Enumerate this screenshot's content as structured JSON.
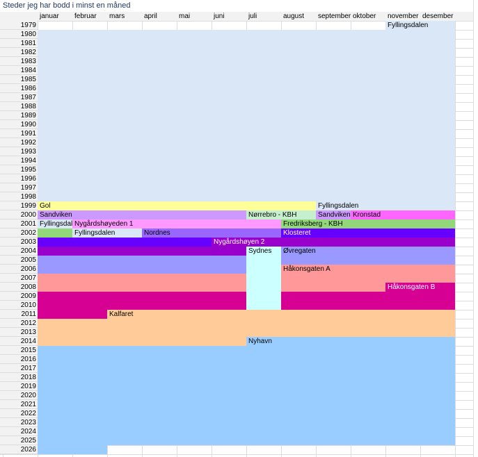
{
  "title": "Steder jeg har bodd i minst en måned",
  "months": [
    "januar",
    "februar",
    "mars",
    "april",
    "mai",
    "juni",
    "juli",
    "august",
    "september",
    "oktober",
    "november",
    "desember"
  ],
  "colors": {
    "fyllingsdalen": "#dae7f6",
    "gol": "#ffff99",
    "sandviken": "#cc99ff",
    "norrebro": "#c6efce",
    "kronstad": "#ff66ff",
    "nygardshoyeden1": "#ff99ff",
    "fredriksberg": "#92d87a",
    "nordnes": "#9966ff",
    "klosteret": "#6600ff",
    "nygardshoyen2": "#9900cc",
    "sydnes": "#ccffff",
    "ovregaten": "#9999ff",
    "hakonsgatenA": "#ff9999",
    "hakonsgatenB": "#d60093",
    "kalfaret": "#ffcc99",
    "nyhavn": "#99ccff"
  },
  "rows": [
    {
      "year": "1979",
      "segments": [
        {
          "from": 11,
          "to": 12,
          "color": "fyllingsdalen",
          "label": "Fyllingsdalen"
        }
      ]
    },
    {
      "year": "1980",
      "segments": [
        {
          "from": 1,
          "to": 12,
          "color": "fyllingsdalen"
        }
      ]
    },
    {
      "year": "1981",
      "segments": [
        {
          "from": 1,
          "to": 12,
          "color": "fyllingsdalen"
        }
      ]
    },
    {
      "year": "1982",
      "segments": [
        {
          "from": 1,
          "to": 12,
          "color": "fyllingsdalen"
        }
      ]
    },
    {
      "year": "1983",
      "segments": [
        {
          "from": 1,
          "to": 12,
          "color": "fyllingsdalen"
        }
      ]
    },
    {
      "year": "1984",
      "segments": [
        {
          "from": 1,
          "to": 12,
          "color": "fyllingsdalen"
        }
      ]
    },
    {
      "year": "1985",
      "segments": [
        {
          "from": 1,
          "to": 12,
          "color": "fyllingsdalen"
        }
      ]
    },
    {
      "year": "1986",
      "segments": [
        {
          "from": 1,
          "to": 12,
          "color": "fyllingsdalen"
        }
      ]
    },
    {
      "year": "1987",
      "segments": [
        {
          "from": 1,
          "to": 12,
          "color": "fyllingsdalen"
        }
      ]
    },
    {
      "year": "1988",
      "segments": [
        {
          "from": 1,
          "to": 12,
          "color": "fyllingsdalen"
        }
      ]
    },
    {
      "year": "1989",
      "segments": [
        {
          "from": 1,
          "to": 12,
          "color": "fyllingsdalen"
        }
      ]
    },
    {
      "year": "1990",
      "segments": [
        {
          "from": 1,
          "to": 12,
          "color": "fyllingsdalen"
        }
      ]
    },
    {
      "year": "1991",
      "segments": [
        {
          "from": 1,
          "to": 12,
          "color": "fyllingsdalen"
        }
      ]
    },
    {
      "year": "1992",
      "segments": [
        {
          "from": 1,
          "to": 12,
          "color": "fyllingsdalen"
        }
      ]
    },
    {
      "year": "1993",
      "segments": [
        {
          "from": 1,
          "to": 12,
          "color": "fyllingsdalen"
        }
      ]
    },
    {
      "year": "1994",
      "segments": [
        {
          "from": 1,
          "to": 12,
          "color": "fyllingsdalen"
        }
      ]
    },
    {
      "year": "1995",
      "segments": [
        {
          "from": 1,
          "to": 12,
          "color": "fyllingsdalen"
        }
      ]
    },
    {
      "year": "1996",
      "segments": [
        {
          "from": 1,
          "to": 12,
          "color": "fyllingsdalen"
        }
      ]
    },
    {
      "year": "1997",
      "segments": [
        {
          "from": 1,
          "to": 12,
          "color": "fyllingsdalen"
        }
      ]
    },
    {
      "year": "1998",
      "segments": [
        {
          "from": 1,
          "to": 12,
          "color": "fyllingsdalen"
        }
      ]
    },
    {
      "year": "1999",
      "segments": [
        {
          "from": 1,
          "to": 8,
          "color": "gol",
          "label": "Gol"
        },
        {
          "from": 9,
          "to": 12,
          "color": "fyllingsdalen",
          "label": "Fyllingsdalen"
        }
      ]
    },
    {
      "year": "2000",
      "segments": [
        {
          "from": 1,
          "to": 6,
          "color": "sandviken",
          "label": "Sandviken"
        },
        {
          "from": 7,
          "to": 8,
          "color": "norrebro",
          "label": "Nørrebro - KBH"
        },
        {
          "from": 9,
          "to": 9,
          "color": "sandviken",
          "label": "Sandviken"
        },
        {
          "from": 10,
          "to": 12,
          "color": "kronstad",
          "label": "Kronstad"
        }
      ]
    },
    {
      "year": "2001",
      "segments": [
        {
          "from": 1,
          "to": 1,
          "color": "fyllingsdalen",
          "label": "Fyllingsdalen"
        },
        {
          "from": 2,
          "to": 7,
          "color": "nygardshoyeden1",
          "label": "Nygårdshøyeden 1"
        },
        {
          "from": 8,
          "to": 12,
          "color": "fredriksberg",
          "label": "Fredriksberg - KBH"
        }
      ]
    },
    {
      "year": "2002",
      "segments": [
        {
          "from": 1,
          "to": 1,
          "color": "fredriksberg"
        },
        {
          "from": 2,
          "to": 3,
          "color": "fyllingsdalen",
          "label": "Fyllingsdalen"
        },
        {
          "from": 4,
          "to": 7,
          "color": "nordnes",
          "label": "Nordnes"
        },
        {
          "from": 8,
          "to": 12,
          "color": "klosteret",
          "label": "Klosteret",
          "light": true
        }
      ]
    },
    {
      "year": "2003",
      "segments": [
        {
          "from": 1,
          "to": 5,
          "color": "klosteret"
        },
        {
          "from": 6,
          "to": 12,
          "color": "nygardshoyen2",
          "label": "Nygårdshøyen 2",
          "light": true
        }
      ]
    },
    {
      "year": "2004",
      "segments": [
        {
          "from": 1,
          "to": 6,
          "color": "nygardshoyen2"
        },
        {
          "from": 7,
          "to": 7,
          "color": "sydnes",
          "label": "Sydnes"
        },
        {
          "from": 8,
          "to": 12,
          "color": "ovregaten",
          "label": "Øvregaten"
        }
      ]
    },
    {
      "year": "2005",
      "segments": [
        {
          "from": 1,
          "to": 6,
          "color": "ovregaten"
        },
        {
          "from": 7,
          "to": 7,
          "color": "sydnes"
        },
        {
          "from": 8,
          "to": 12,
          "color": "ovregaten"
        }
      ]
    },
    {
      "year": "2006",
      "segments": [
        {
          "from": 1,
          "to": 6,
          "color": "ovregaten"
        },
        {
          "from": 7,
          "to": 7,
          "color": "sydnes"
        },
        {
          "from": 8,
          "to": 12,
          "color": "hakonsgatenA",
          "label": "Håkonsgaten A"
        }
      ]
    },
    {
      "year": "2007",
      "segments": [
        {
          "from": 1,
          "to": 6,
          "color": "hakonsgatenA"
        },
        {
          "from": 7,
          "to": 7,
          "color": "sydnes"
        },
        {
          "from": 8,
          "to": 12,
          "color": "hakonsgatenA"
        }
      ]
    },
    {
      "year": "2008",
      "segments": [
        {
          "from": 1,
          "to": 6,
          "color": "hakonsgatenA"
        },
        {
          "from": 7,
          "to": 7,
          "color": "sydnes"
        },
        {
          "from": 8,
          "to": 10,
          "color": "hakonsgatenA"
        },
        {
          "from": 11,
          "to": 12,
          "color": "hakonsgatenB",
          "label": "Håkonsgaten B",
          "light": true
        }
      ]
    },
    {
      "year": "2009",
      "segments": [
        {
          "from": 1,
          "to": 6,
          "color": "hakonsgatenB"
        },
        {
          "from": 7,
          "to": 7,
          "color": "sydnes"
        },
        {
          "from": 8,
          "to": 12,
          "color": "hakonsgatenB"
        }
      ]
    },
    {
      "year": "2010",
      "segments": [
        {
          "from": 1,
          "to": 6,
          "color": "hakonsgatenB"
        },
        {
          "from": 7,
          "to": 7,
          "color": "sydnes"
        },
        {
          "from": 8,
          "to": 12,
          "color": "hakonsgatenB"
        }
      ]
    },
    {
      "year": "2011",
      "segments": [
        {
          "from": 1,
          "to": 2,
          "color": "hakonsgatenB"
        },
        {
          "from": 3,
          "to": 12,
          "color": "kalfaret",
          "label": "Kalfaret"
        }
      ]
    },
    {
      "year": "2012",
      "segments": [
        {
          "from": 1,
          "to": 12,
          "color": "kalfaret"
        }
      ]
    },
    {
      "year": "2013",
      "segments": [
        {
          "from": 1,
          "to": 12,
          "color": "kalfaret"
        }
      ]
    },
    {
      "year": "2014",
      "segments": [
        {
          "from": 1,
          "to": 6,
          "color": "kalfaret"
        },
        {
          "from": 7,
          "to": 12,
          "color": "nyhavn",
          "label": "Nyhavn"
        }
      ]
    },
    {
      "year": "2015",
      "segments": [
        {
          "from": 1,
          "to": 12,
          "color": "nyhavn"
        }
      ]
    },
    {
      "year": "2016",
      "segments": [
        {
          "from": 1,
          "to": 12,
          "color": "nyhavn"
        }
      ]
    },
    {
      "year": "2017",
      "segments": [
        {
          "from": 1,
          "to": 12,
          "color": "nyhavn"
        }
      ]
    },
    {
      "year": "2018",
      "segments": [
        {
          "from": 1,
          "to": 12,
          "color": "nyhavn"
        }
      ]
    },
    {
      "year": "2019",
      "segments": [
        {
          "from": 1,
          "to": 12,
          "color": "nyhavn"
        }
      ]
    },
    {
      "year": "2020",
      "segments": [
        {
          "from": 1,
          "to": 12,
          "color": "nyhavn"
        }
      ]
    },
    {
      "year": "2021",
      "segments": [
        {
          "from": 1,
          "to": 12,
          "color": "nyhavn"
        }
      ]
    },
    {
      "year": "2022",
      "segments": [
        {
          "from": 1,
          "to": 12,
          "color": "nyhavn"
        }
      ]
    },
    {
      "year": "2023",
      "segments": [
        {
          "from": 1,
          "to": 12,
          "color": "nyhavn"
        }
      ]
    },
    {
      "year": "2024",
      "segments": [
        {
          "from": 1,
          "to": 12,
          "color": "nyhavn"
        }
      ]
    },
    {
      "year": "2025",
      "segments": [
        {
          "from": 1,
          "to": 12,
          "color": "nyhavn"
        }
      ]
    },
    {
      "year": "2026",
      "segments": [
        {
          "from": 1,
          "to": 2,
          "color": "nyhavn"
        }
      ]
    }
  ]
}
